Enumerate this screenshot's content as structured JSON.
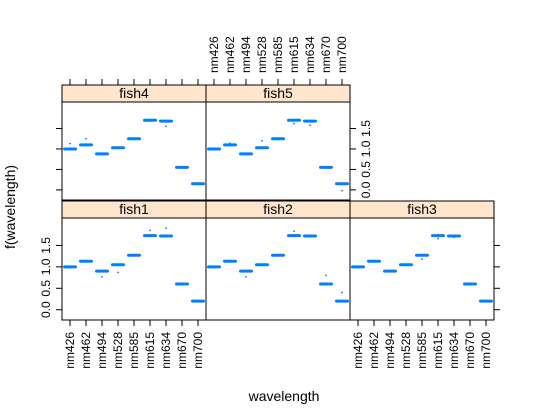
{
  "chart_data": {
    "type": "box",
    "layout": "lattice bwplot, 3 columns x 2 rows",
    "xlabel": "wavelength",
    "ylabel": "f(wavelength)",
    "categories": [
      "nm426",
      "nm462",
      "nm494",
      "nm528",
      "nm585",
      "nm615",
      "nm634",
      "nm670",
      "nm700"
    ],
    "yticks": [
      "0.0",
      "0.5",
      "1.0",
      "1.5"
    ],
    "ylim": [
      -0.1,
      2.0
    ],
    "colors": {
      "strip": "#ffe5cc",
      "box": "#0080ff",
      "outlier": "#0080ff",
      "frame": "#000000"
    },
    "panels": [
      {
        "name": "fish4",
        "values": [
          1.0,
          1.1,
          0.88,
          1.03,
          1.25,
          1.7,
          1.68,
          0.55,
          0.15
        ],
        "outliers": [
          [
            0,
            1.13
          ],
          [
            1,
            1.25
          ],
          [
            6,
            1.55
          ]
        ]
      },
      {
        "name": "fish5",
        "values": [
          1.0,
          1.1,
          0.88,
          1.03,
          1.25,
          1.7,
          1.68,
          0.55,
          0.15
        ],
        "outliers": [
          [
            1,
            1.14
          ],
          [
            3,
            1.2
          ],
          [
            5,
            1.62
          ],
          [
            6,
            1.58
          ],
          [
            8,
            -0.02
          ]
        ]
      },
      {
        "name": "fish1",
        "values": [
          1.0,
          1.13,
          0.9,
          1.05,
          1.27,
          1.73,
          1.72,
          0.6,
          0.2
        ],
        "outliers": [
          [
            2,
            0.77
          ],
          [
            3,
            0.87
          ],
          [
            5,
            1.85
          ],
          [
            6,
            1.9
          ]
        ]
      },
      {
        "name": "fish2",
        "values": [
          1.0,
          1.13,
          0.9,
          1.05,
          1.27,
          1.73,
          1.72,
          0.6,
          0.2
        ],
        "outliers": [
          [
            2,
            0.77
          ],
          [
            5,
            1.83
          ],
          [
            7,
            0.8
          ],
          [
            8,
            0.4
          ]
        ]
      },
      {
        "name": "fish3",
        "values": [
          1.0,
          1.13,
          0.9,
          1.05,
          1.27,
          1.73,
          1.72,
          0.6,
          0.2
        ],
        "outliers": [
          [
            4,
            1.18
          ],
          [
            5,
            1.66
          ],
          [
            6,
            1.69
          ]
        ]
      }
    ]
  }
}
